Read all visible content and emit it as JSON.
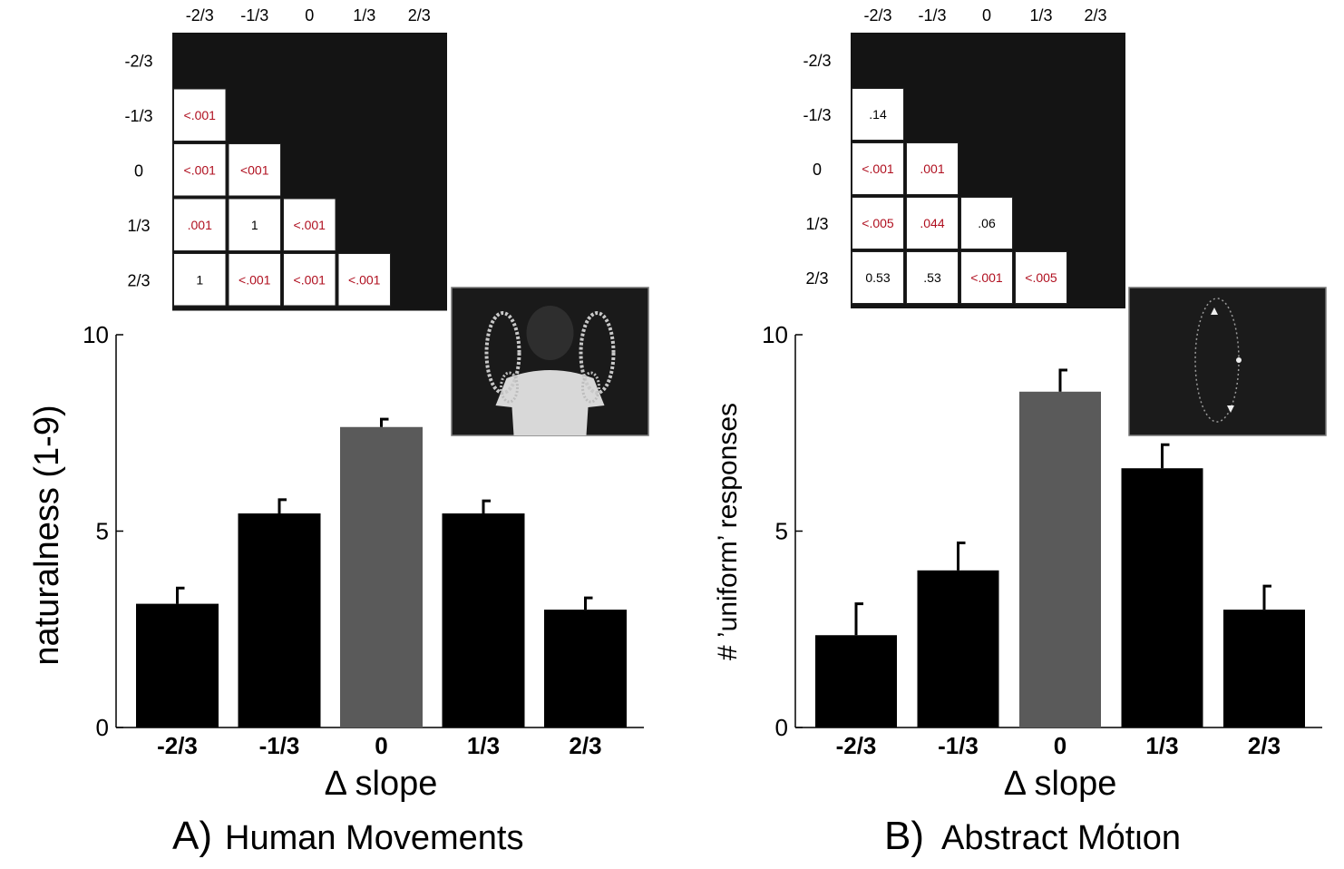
{
  "chart_data": [
    {
      "type": "bar",
      "panel_label": "A)",
      "panel_title": "Human Movements",
      "categories": [
        "-2/3",
        "-1/3",
        "0",
        "1/3",
        "2/3"
      ],
      "values": [
        3.15,
        5.45,
        7.65,
        5.45,
        3.0
      ],
      "errors": [
        0.4,
        0.35,
        0.2,
        0.32,
        0.3
      ],
      "highlight_index": 2,
      "xlabel": "Δ slope",
      "ylabel": "naturalness (1-9)",
      "ylim": [
        0,
        10
      ],
      "yticks": [
        "0",
        "5",
        "10"
      ],
      "matrix": {
        "labels": [
          "-2/3",
          "-1/3",
          "0",
          "1/3",
          "2/3"
        ],
        "cells": [
          {
            "row": 1,
            "col": 0,
            "text": ".001",
            "prefix": "<",
            "highlight": true
          },
          {
            "row": 2,
            "col": 0,
            "text": ".001",
            "prefix": "<",
            "highlight": true
          },
          {
            "row": 2,
            "col": 1,
            "text": "001",
            "prefix": "<",
            "highlight": true
          },
          {
            "row": 3,
            "col": 0,
            "text": ".001",
            "prefix": "",
            "highlight": true
          },
          {
            "row": 3,
            "col": 1,
            "text": "1",
            "prefix": "",
            "highlight": false
          },
          {
            "row": 3,
            "col": 2,
            "text": ".001",
            "prefix": "<",
            "highlight": true
          },
          {
            "row": 4,
            "col": 0,
            "text": "1",
            "prefix": "",
            "highlight": false
          },
          {
            "row": 4,
            "col": 1,
            "text": ".001",
            "prefix": "<",
            "highlight": true
          },
          {
            "row": 4,
            "col": 2,
            "text": ".001",
            "prefix": "<",
            "highlight": true
          },
          {
            "row": 4,
            "col": 3,
            "text": ".001",
            "prefix": "<",
            "highlight": true
          }
        ]
      },
      "inset": "human-figure-arm-trajectories"
    },
    {
      "type": "bar",
      "panel_label": "B)",
      "panel_title": "Abstract Mόtιon",
      "categories": [
        "-2/3",
        "-1/3",
        "0",
        "1/3",
        "2/3"
      ],
      "values": [
        2.35,
        4.0,
        8.55,
        6.6,
        3.0
      ],
      "errors": [
        0.8,
        0.7,
        0.55,
        0.6,
        0.6
      ],
      "highlight_index": 2,
      "xlabel": "Δ slope",
      "ylabel": "# ’uniform’ responses",
      "ylim": [
        0,
        10
      ],
      "yticks": [
        "0",
        "5",
        "10"
      ],
      "matrix": {
        "labels": [
          "-2/3",
          "-1/3",
          "0",
          "1/3",
          "2/3"
        ],
        "cells": [
          {
            "row": 1,
            "col": 0,
            "text": ".14",
            "prefix": "",
            "highlight": false
          },
          {
            "row": 2,
            "col": 0,
            "text": ".001",
            "prefix": "<",
            "highlight": true
          },
          {
            "row": 2,
            "col": 1,
            "text": ".001",
            "prefix": "",
            "highlight": true
          },
          {
            "row": 3,
            "col": 0,
            "text": ".005",
            "prefix": "<",
            "highlight": true
          },
          {
            "row": 3,
            "col": 1,
            "text": ".044",
            "prefix": "",
            "highlight": true
          },
          {
            "row": 3,
            "col": 2,
            "text": ".06",
            "prefix": "",
            "highlight": false
          },
          {
            "row": 4,
            "col": 0,
            "text": "0.53",
            "prefix": "",
            "highlight": false
          },
          {
            "row": 4,
            "col": 1,
            "text": ".53",
            "prefix": "",
            "highlight": false
          },
          {
            "row": 4,
            "col": 2,
            "text": ".001",
            "prefix": "<",
            "highlight": true
          },
          {
            "row": 4,
            "col": 3,
            "text": ".005",
            "prefix": "<",
            "highlight": true
          }
        ]
      },
      "inset": "elliptical-dot-trajectory"
    }
  ],
  "colors": {
    "bar": "#000000",
    "bar_highlight": "#5a5a5a",
    "matrix_fill": "#141414",
    "sig_text": "#b01020",
    "nonsig_text": "#000000"
  }
}
